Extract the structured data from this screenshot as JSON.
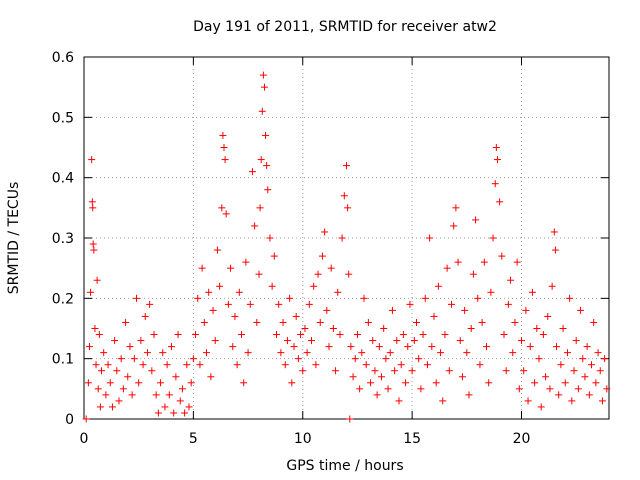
{
  "chart_data": {
    "type": "scatter",
    "title": "Day 191 of 2011, SRMTID for receiver atw2",
    "xlabel": "GPS time / hours",
    "ylabel": "SRMTID / TECUs",
    "xlim": [
      0,
      24
    ],
    "ylim": [
      0,
      0.6
    ],
    "xticks": [
      0,
      5,
      10,
      15,
      20
    ],
    "xtick_labels": [
      "0",
      "5",
      "10",
      "15",
      "20"
    ],
    "yticks": [
      0,
      0.1,
      0.2,
      0.3,
      0.4,
      0.5,
      0.6
    ],
    "ytick_labels": [
      "0",
      "0.1",
      "0.2",
      "0.3",
      "0.4",
      "0.5",
      "0.6"
    ],
    "grid": true,
    "marker": "+",
    "color": "#ff0000",
    "series": [
      {
        "name": "SRMTID",
        "points": [
          [
            0.1,
            0.0
          ],
          [
            0.2,
            0.06
          ],
          [
            0.25,
            0.12
          ],
          [
            0.3,
            0.21
          ],
          [
            0.35,
            0.43
          ],
          [
            0.38,
            0.36
          ],
          [
            0.4,
            0.35
          ],
          [
            0.42,
            0.29
          ],
          [
            0.45,
            0.28
          ],
          [
            0.5,
            0.15
          ],
          [
            0.55,
            0.09
          ],
          [
            0.6,
            0.23
          ],
          [
            0.65,
            0.05
          ],
          [
            0.7,
            0.14
          ],
          [
            0.75,
            0.02
          ],
          [
            0.8,
            0.08
          ],
          [
            0.9,
            0.11
          ],
          [
            1.0,
            0.04
          ],
          [
            1.1,
            0.09
          ],
          [
            1.2,
            0.06
          ],
          [
            1.3,
            0.02
          ],
          [
            1.4,
            0.13
          ],
          [
            1.5,
            0.08
          ],
          [
            1.6,
            0.03
          ],
          [
            1.7,
            0.1
          ],
          [
            1.8,
            0.05
          ],
          [
            1.9,
            0.16
          ],
          [
            2.0,
            0.07
          ],
          [
            2.1,
            0.12
          ],
          [
            2.2,
            0.04
          ],
          [
            2.3,
            0.1
          ],
          [
            2.4,
            0.2
          ],
          [
            2.5,
            0.06
          ],
          [
            2.6,
            0.13
          ],
          [
            2.7,
            0.09
          ],
          [
            2.8,
            0.17
          ],
          [
            2.9,
            0.11
          ],
          [
            3.0,
            0.19
          ],
          [
            3.1,
            0.08
          ],
          [
            3.2,
            0.14
          ],
          [
            3.3,
            0.04
          ],
          [
            3.4,
            0.01
          ],
          [
            3.5,
            0.06
          ],
          [
            3.6,
            0.11
          ],
          [
            3.7,
            0.02
          ],
          [
            3.8,
            0.09
          ],
          [
            3.9,
            0.04
          ],
          [
            4.0,
            0.12
          ],
          [
            4.1,
            0.01
          ],
          [
            4.2,
            0.07
          ],
          [
            4.3,
            0.14
          ],
          [
            4.4,
            0.03
          ],
          [
            4.5,
            0.05
          ],
          [
            4.6,
            0.01
          ],
          [
            4.7,
            0.09
          ],
          [
            4.8,
            0.02
          ],
          [
            4.9,
            0.06
          ],
          [
            5.0,
            0.1
          ],
          [
            5.1,
            0.14
          ],
          [
            5.2,
            0.2
          ],
          [
            5.3,
            0.09
          ],
          [
            5.4,
            0.25
          ],
          [
            5.5,
            0.16
          ],
          [
            5.6,
            0.11
          ],
          [
            5.7,
            0.21
          ],
          [
            5.8,
            0.07
          ],
          [
            5.9,
            0.18
          ],
          [
            6.0,
            0.13
          ],
          [
            6.1,
            0.28
          ],
          [
            6.2,
            0.22
          ],
          [
            6.3,
            0.35
          ],
          [
            6.35,
            0.47
          ],
          [
            6.4,
            0.45
          ],
          [
            6.45,
            0.43
          ],
          [
            6.5,
            0.34
          ],
          [
            6.6,
            0.19
          ],
          [
            6.7,
            0.25
          ],
          [
            6.8,
            0.12
          ],
          [
            6.9,
            0.17
          ],
          [
            7.0,
            0.09
          ],
          [
            7.1,
            0.21
          ],
          [
            7.2,
            0.14
          ],
          [
            7.3,
            0.06
          ],
          [
            7.4,
            0.26
          ],
          [
            7.5,
            0.11
          ],
          [
            7.6,
            0.19
          ],
          [
            7.7,
            0.41
          ],
          [
            7.8,
            0.32
          ],
          [
            7.9,
            0.16
          ],
          [
            8.0,
            0.24
          ],
          [
            8.05,
            0.35
          ],
          [
            8.1,
            0.43
          ],
          [
            8.15,
            0.51
          ],
          [
            8.2,
            0.57
          ],
          [
            8.25,
            0.55
          ],
          [
            8.3,
            0.47
          ],
          [
            8.35,
            0.42
          ],
          [
            8.4,
            0.38
          ],
          [
            8.5,
            0.3
          ],
          [
            8.6,
            0.22
          ],
          [
            8.7,
            0.27
          ],
          [
            8.8,
            0.14
          ],
          [
            8.9,
            0.19
          ],
          [
            9.0,
            0.11
          ],
          [
            9.1,
            0.16
          ],
          [
            9.2,
            0.09
          ],
          [
            9.3,
            0.13
          ],
          [
            9.4,
            0.2
          ],
          [
            9.5,
            0.06
          ],
          [
            9.6,
            0.12
          ],
          [
            9.7,
            0.17
          ],
          [
            9.8,
            0.1
          ],
          [
            9.9,
            0.14
          ],
          [
            10.0,
            0.08
          ],
          [
            10.1,
            0.15
          ],
          [
            10.2,
            0.11
          ],
          [
            10.3,
            0.19
          ],
          [
            10.4,
            0.13
          ],
          [
            10.5,
            0.22
          ],
          [
            10.6,
            0.09
          ],
          [
            10.7,
            0.24
          ],
          [
            10.8,
            0.16
          ],
          [
            10.9,
            0.27
          ],
          [
            11.0,
            0.31
          ],
          [
            11.1,
            0.18
          ],
          [
            11.2,
            0.12
          ],
          [
            11.3,
            0.25
          ],
          [
            11.4,
            0.15
          ],
          [
            11.5,
            0.08
          ],
          [
            11.6,
            0.21
          ],
          [
            11.7,
            0.14
          ],
          [
            11.8,
            0.3
          ],
          [
            11.9,
            0.37
          ],
          [
            12.0,
            0.42
          ],
          [
            12.05,
            0.35
          ],
          [
            12.1,
            0.24
          ],
          [
            12.15,
            0.0
          ],
          [
            12.2,
            0.12
          ],
          [
            12.3,
            0.07
          ],
          [
            12.4,
            0.1
          ],
          [
            12.5,
            0.14
          ],
          [
            12.6,
            0.05
          ],
          [
            12.7,
            0.11
          ],
          [
            12.8,
            0.2
          ],
          [
            12.9,
            0.09
          ],
          [
            13.0,
            0.16
          ],
          [
            13.1,
            0.06
          ],
          [
            13.2,
            0.13
          ],
          [
            13.3,
            0.08
          ],
          [
            13.4,
            0.04
          ],
          [
            13.5,
            0.12
          ],
          [
            13.6,
            0.07
          ],
          [
            13.7,
            0.15
          ],
          [
            13.8,
            0.1
          ],
          [
            13.9,
            0.05
          ],
          [
            14.0,
            0.11
          ],
          [
            14.1,
            0.18
          ],
          [
            14.2,
            0.08
          ],
          [
            14.3,
            0.13
          ],
          [
            14.4,
            0.03
          ],
          [
            14.5,
            0.09
          ],
          [
            14.6,
            0.14
          ],
          [
            14.7,
            0.06
          ],
          [
            14.8,
            0.12
          ],
          [
            14.9,
            0.19
          ],
          [
            15.0,
            0.08
          ],
          [
            15.1,
            0.13
          ],
          [
            15.2,
            0.16
          ],
          [
            15.3,
            0.1
          ],
          [
            15.4,
            0.05
          ],
          [
            15.5,
            0.14
          ],
          [
            15.6,
            0.2
          ],
          [
            15.7,
            0.09
          ],
          [
            15.8,
            0.3
          ],
          [
            15.9,
            0.12
          ],
          [
            16.0,
            0.17
          ],
          [
            16.1,
            0.06
          ],
          [
            16.2,
            0.22
          ],
          [
            16.3,
            0.11
          ],
          [
            16.4,
            0.03
          ],
          [
            16.5,
            0.14
          ],
          [
            16.6,
            0.25
          ],
          [
            16.7,
            0.08
          ],
          [
            16.8,
            0.19
          ],
          [
            16.9,
            0.32
          ],
          [
            17.0,
            0.35
          ],
          [
            17.1,
            0.26
          ],
          [
            17.2,
            0.13
          ],
          [
            17.3,
            0.07
          ],
          [
            17.4,
            0.18
          ],
          [
            17.5,
            0.11
          ],
          [
            17.6,
            0.04
          ],
          [
            17.7,
            0.15
          ],
          [
            17.8,
            0.24
          ],
          [
            17.9,
            0.33
          ],
          [
            18.0,
            0.2
          ],
          [
            18.1,
            0.09
          ],
          [
            18.2,
            0.16
          ],
          [
            18.3,
            0.26
          ],
          [
            18.4,
            0.12
          ],
          [
            18.5,
            0.06
          ],
          [
            18.6,
            0.21
          ],
          [
            18.7,
            0.3
          ],
          [
            18.8,
            0.39
          ],
          [
            18.85,
            0.45
          ],
          [
            18.9,
            0.43
          ],
          [
            19.0,
            0.36
          ],
          [
            19.1,
            0.27
          ],
          [
            19.2,
            0.14
          ],
          [
            19.3,
            0.08
          ],
          [
            19.4,
            0.19
          ],
          [
            19.5,
            0.23
          ],
          [
            19.6,
            0.11
          ],
          [
            19.7,
            0.16
          ],
          [
            19.8,
            0.26
          ],
          [
            19.9,
            0.05
          ],
          [
            20.0,
            0.13
          ],
          [
            20.1,
            0.08
          ],
          [
            20.2,
            0.18
          ],
          [
            20.3,
            0.03
          ],
          [
            20.4,
            0.12
          ],
          [
            20.5,
            0.21
          ],
          [
            20.6,
            0.06
          ],
          [
            20.7,
            0.15
          ],
          [
            20.8,
            0.1
          ],
          [
            20.9,
            0.02
          ],
          [
            21.0,
            0.14
          ],
          [
            21.1,
            0.07
          ],
          [
            21.2,
            0.17
          ],
          [
            21.3,
            0.05
          ],
          [
            21.4,
            0.22
          ],
          [
            21.5,
            0.31
          ],
          [
            21.55,
            0.28
          ],
          [
            21.6,
            0.12
          ],
          [
            21.7,
            0.04
          ],
          [
            21.8,
            0.09
          ],
          [
            21.9,
            0.15
          ],
          [
            22.0,
            0.06
          ],
          [
            22.1,
            0.11
          ],
          [
            22.2,
            0.2
          ],
          [
            22.3,
            0.03
          ],
          [
            22.4,
            0.08
          ],
          [
            22.5,
            0.13
          ],
          [
            22.6,
            0.05
          ],
          [
            22.7,
            0.18
          ],
          [
            22.8,
            0.1
          ],
          [
            22.9,
            0.07
          ],
          [
            23.0,
            0.12
          ],
          [
            23.1,
            0.04
          ],
          [
            23.2,
            0.09
          ],
          [
            23.3,
            0.16
          ],
          [
            23.4,
            0.06
          ],
          [
            23.5,
            0.11
          ],
          [
            23.6,
            0.08
          ],
          [
            23.7,
            0.03
          ],
          [
            23.8,
            0.1
          ],
          [
            23.9,
            0.05
          ]
        ]
      }
    ]
  }
}
